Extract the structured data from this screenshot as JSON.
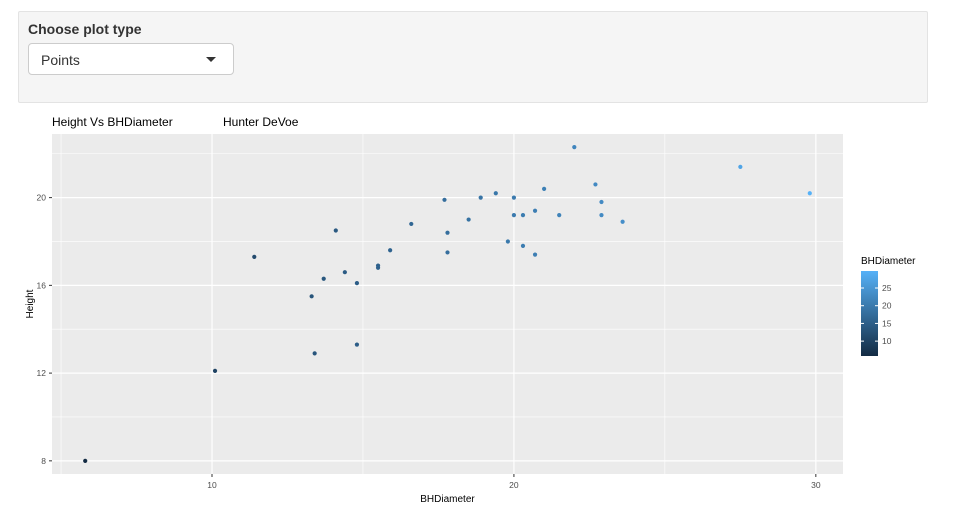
{
  "control_panel": {
    "label": "Choose plot type",
    "select": {
      "value": "Points"
    }
  },
  "plot": {
    "title": "Height Vs BHDiameter",
    "author": "Hunter DeVoe"
  },
  "chart_data": {
    "type": "scatter",
    "xlabel": "BHDiameter",
    "ylabel": "Height",
    "xlim": [
      4.7,
      30.9
    ],
    "ylim": [
      7.4,
      22.9
    ],
    "x_ticks": [
      10,
      20,
      30
    ],
    "y_ticks": [
      8,
      12,
      16,
      20
    ],
    "grid": true,
    "color_variable": "BHDiameter",
    "colorbar": {
      "title": "BHDiameter",
      "ticks": [
        10,
        15,
        20,
        25
      ],
      "low_color": "#132b43",
      "high_color": "#56b1f7"
    },
    "points": [
      {
        "x": 5.8,
        "y": 8.0
      },
      {
        "x": 10.1,
        "y": 12.1
      },
      {
        "x": 11.4,
        "y": 17.3
      },
      {
        "x": 13.3,
        "y": 15.5
      },
      {
        "x": 13.4,
        "y": 12.9
      },
      {
        "x": 13.7,
        "y": 16.3
      },
      {
        "x": 14.1,
        "y": 18.5
      },
      {
        "x": 14.4,
        "y": 16.6
      },
      {
        "x": 14.8,
        "y": 16.1
      },
      {
        "x": 14.8,
        "y": 13.3
      },
      {
        "x": 15.5,
        "y": 16.8
      },
      {
        "x": 15.5,
        "y": 16.9
      },
      {
        "x": 15.9,
        "y": 17.6
      },
      {
        "x": 16.6,
        "y": 18.8
      },
      {
        "x": 17.7,
        "y": 19.9
      },
      {
        "x": 17.8,
        "y": 18.4
      },
      {
        "x": 17.8,
        "y": 17.5
      },
      {
        "x": 18.5,
        "y": 19.0
      },
      {
        "x": 18.9,
        "y": 20.0
      },
      {
        "x": 19.4,
        "y": 20.2
      },
      {
        "x": 19.8,
        "y": 18.0
      },
      {
        "x": 20.0,
        "y": 20.0
      },
      {
        "x": 20.0,
        "y": 19.2
      },
      {
        "x": 20.3,
        "y": 19.2
      },
      {
        "x": 20.3,
        "y": 17.8
      },
      {
        "x": 20.7,
        "y": 19.4
      },
      {
        "x": 20.7,
        "y": 17.4
      },
      {
        "x": 21.0,
        "y": 20.4
      },
      {
        "x": 21.5,
        "y": 19.2
      },
      {
        "x": 22.0,
        "y": 22.3
      },
      {
        "x": 22.7,
        "y": 20.6
      },
      {
        "x": 22.9,
        "y": 19.8
      },
      {
        "x": 22.9,
        "y": 19.2
      },
      {
        "x": 23.6,
        "y": 18.9
      },
      {
        "x": 27.5,
        "y": 21.4
      },
      {
        "x": 29.8,
        "y": 20.2
      }
    ]
  }
}
